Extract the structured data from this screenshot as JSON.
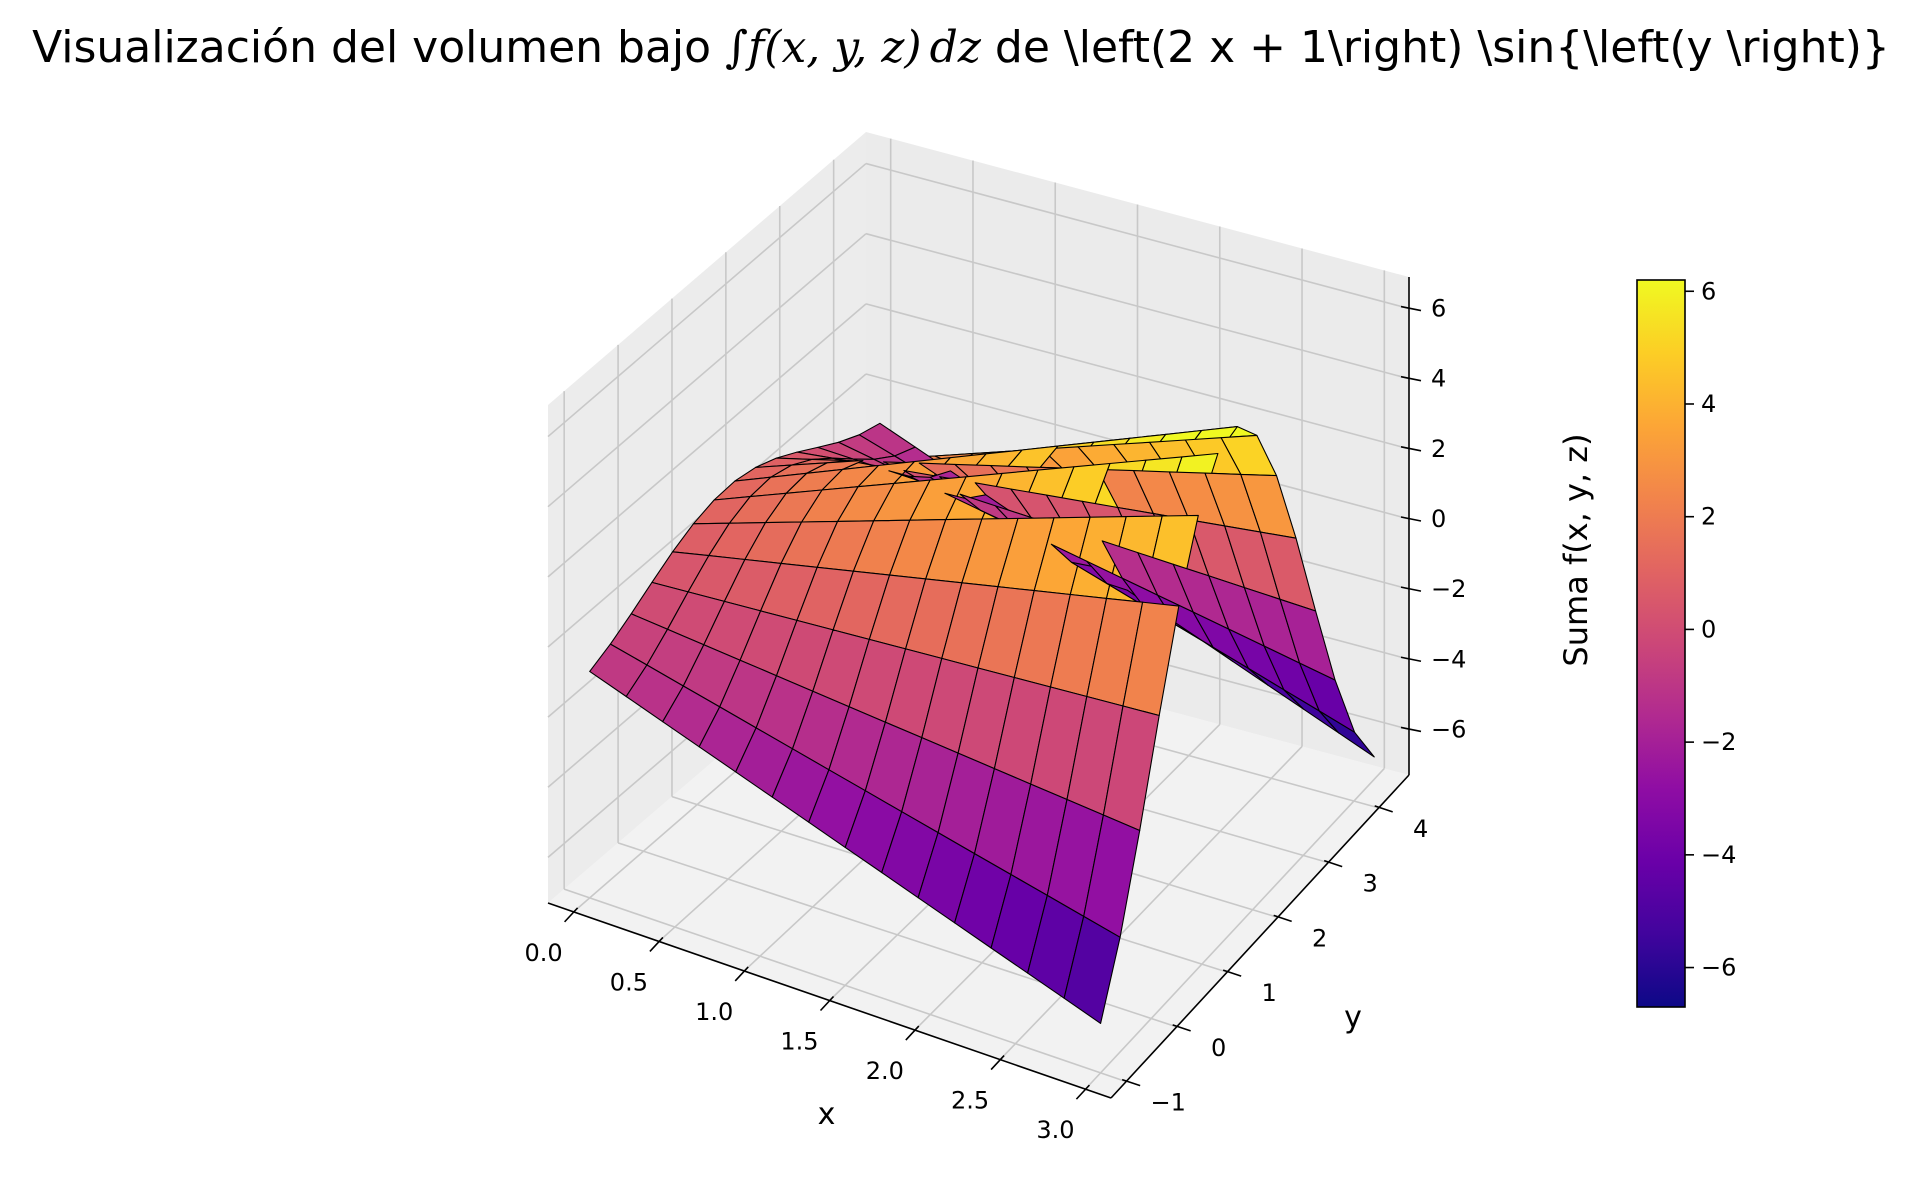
{
  "title": {
    "prefix": "Visualización del volumen bajo ",
    "integral_symbol": "∫",
    "integrand": "f(x, y, z)",
    "differential": "dz",
    "suffix": " de \\left(2 x + 1\\right) \\sin{\\left(y \\right)}"
  },
  "chart_data": {
    "type": "surface",
    "function": "(2x+1)·sin(y)",
    "colormap": "plasma",
    "grid": true,
    "x": {
      "label": "x",
      "range": [
        -0.15,
        3.15
      ],
      "ticks": [
        0.0,
        0.5,
        1.0,
        1.5,
        2.0,
        2.5,
        3.0
      ],
      "tick_labels": [
        "0.0",
        "0.5",
        "1.0",
        "1.5",
        "2.0",
        "2.5",
        "3.0"
      ]
    },
    "y": {
      "label": "y",
      "range": [
        -1.3,
        4.6
      ],
      "ticks": [
        -1,
        0,
        1,
        2,
        3,
        4
      ],
      "tick_labels": [
        "−1",
        "0",
        "1",
        "2",
        "3",
        "4"
      ]
    },
    "z": {
      "range": [
        -7.3,
        6.9
      ],
      "ticks": [
        -6,
        -4,
        -2,
        0,
        2,
        4,
        6
      ],
      "tick_labels": [
        "−6",
        "−4",
        "−2",
        "0",
        "2",
        "4",
        "6"
      ]
    },
    "surface": {
      "x_range": [
        0,
        3
      ],
      "y_range": [
        -1,
        4.4
      ],
      "grid_size": [
        15,
        15
      ]
    },
    "colorbar": {
      "label": "Suma f(x, y, z)",
      "range": [
        -6.7,
        6.2
      ],
      "ticks": [
        -6,
        -4,
        -2,
        0,
        2,
        4,
        6
      ],
      "tick_labels": [
        "−6",
        "−4",
        "−2",
        "0",
        "2",
        "4",
        "6"
      ]
    }
  }
}
